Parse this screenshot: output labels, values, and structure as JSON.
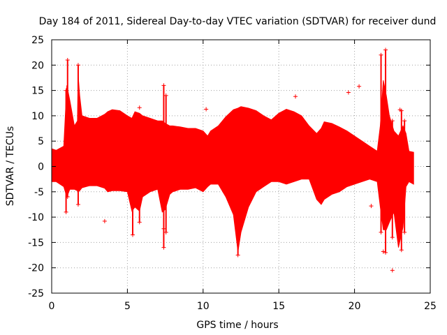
{
  "chart_data": {
    "type": "scatter",
    "title": "Day 184 of 2011, Sidereal Day-to-day VTEC variation (SDTVAR) for receiver dund",
    "xlabel": "GPS time / hours",
    "ylabel": "SDTVAR / TECUs",
    "xlim": [
      0,
      25
    ],
    "ylim": [
      -25,
      25
    ],
    "x_ticks": [
      0,
      5,
      10,
      15,
      20,
      25
    ],
    "y_ticks": [
      -25,
      -20,
      -15,
      -10,
      -5,
      0,
      5,
      10,
      15,
      20,
      25
    ],
    "grid": true,
    "marker": "+",
    "series_color": "#ff0000",
    "envelope": {
      "x": [
        0.0,
        0.3,
        0.8,
        0.9,
        1.0,
        1.2,
        1.5,
        1.7,
        1.75,
        1.85,
        2.0,
        2.5,
        3.0,
        3.5,
        3.7,
        4.0,
        4.5,
        5.0,
        5.3,
        5.5,
        5.8,
        6.0,
        6.5,
        7.0,
        7.3,
        7.5,
        7.8,
        8.0,
        8.5,
        9.0,
        9.5,
        10.0,
        10.3,
        10.5,
        11.0,
        11.5,
        12.0,
        12.3,
        12.5,
        13.0,
        13.5,
        14.0,
        14.5,
        15.0,
        15.5,
        16.0,
        16.5,
        17.0,
        17.5,
        17.8,
        18.0,
        18.5,
        19.0,
        19.5,
        20.0,
        20.5,
        21.0,
        21.5,
        21.7,
        21.9,
        22.1,
        22.3,
        22.6,
        22.9,
        23.2,
        23.4,
        23.6,
        23.9
      ],
      "upper": [
        3.5,
        3.2,
        4,
        10,
        16,
        13,
        8,
        9,
        18,
        14,
        10,
        9.5,
        9.5,
        10.3,
        10.8,
        11.2,
        11,
        10,
        9.5,
        10.8,
        10.5,
        10,
        9.5,
        9,
        9,
        8.5,
        8,
        8,
        7.8,
        7.5,
        7.5,
        7,
        6,
        7,
        8,
        9.8,
        11.2,
        11.5,
        11.8,
        11.5,
        11,
        10,
        9.2,
        10.5,
        11.3,
        10.8,
        10,
        8,
        6.5,
        7.5,
        8.8,
        8.5,
        7.8,
        7,
        6,
        5,
        4,
        3,
        8,
        17,
        14,
        10,
        7,
        6,
        8,
        6.5,
        3,
        2.8
      ],
      "lower": [
        -3,
        -3,
        -4,
        -5,
        -6,
        -4.5,
        -4.5,
        -4.8,
        -5,
        -4.8,
        -4.2,
        -3.8,
        -3.8,
        -4.3,
        -5,
        -4.8,
        -4.8,
        -5,
        -8.8,
        -8,
        -8.8,
        -6,
        -5,
        -4.5,
        -9,
        -8.5,
        -5.5,
        -5,
        -4.5,
        -4.5,
        -4.2,
        -5,
        -4,
        -3.5,
        -3.5,
        -6,
        -9.5,
        -16.8,
        -13,
        -8,
        -5,
        -4,
        -3,
        -3,
        -3.5,
        -3,
        -2.5,
        -2.5,
        -6.5,
        -7.5,
        -6.5,
        -5.5,
        -5,
        -4,
        -3.5,
        -3,
        -2.5,
        -3,
        -8,
        -12.5,
        -12.5,
        -11,
        -9,
        -16,
        -12,
        -4,
        -3,
        -3.5
      ]
    },
    "spikes": [
      {
        "x": 0.95,
        "low": -9,
        "high": 15
      },
      {
        "x": 1.05,
        "low": -6,
        "high": 21
      },
      {
        "x": 1.75,
        "low": -7.5,
        "high": 20
      },
      {
        "x": 5.35,
        "low": -13.5,
        "high": 6
      },
      {
        "x": 5.8,
        "low": -11,
        "high": 8
      },
      {
        "x": 7.4,
        "low": -16,
        "high": 16
      },
      {
        "x": 7.55,
        "low": -13,
        "high": 14
      },
      {
        "x": 12.3,
        "low": -17.5,
        "high": 6
      },
      {
        "x": 21.75,
        "low": -13,
        "high": 22
      },
      {
        "x": 22.05,
        "low": -17,
        "high": 23
      },
      {
        "x": 22.5,
        "low": -14,
        "high": 9
      },
      {
        "x": 23.1,
        "low": -16.5,
        "high": 11
      },
      {
        "x": 23.3,
        "low": -13,
        "high": 9
      }
    ],
    "outliers": [
      {
        "x": 3.5,
        "y": -10.8
      },
      {
        "x": 5.8,
        "y": 11.6
      },
      {
        "x": 10.2,
        "y": 11.3
      },
      {
        "x": 16.1,
        "y": 13.8
      },
      {
        "x": 19.6,
        "y": 14.6
      },
      {
        "x": 20.3,
        "y": 15.8
      },
      {
        "x": 21.1,
        "y": -7.8
      },
      {
        "x": 21.9,
        "y": -16.8
      },
      {
        "x": 22.5,
        "y": -20.5
      },
      {
        "x": 23.0,
        "y": 11.2
      },
      {
        "x": 2.9,
        "y": 4.2
      },
      {
        "x": 7.4,
        "y": -12.3
      }
    ]
  }
}
